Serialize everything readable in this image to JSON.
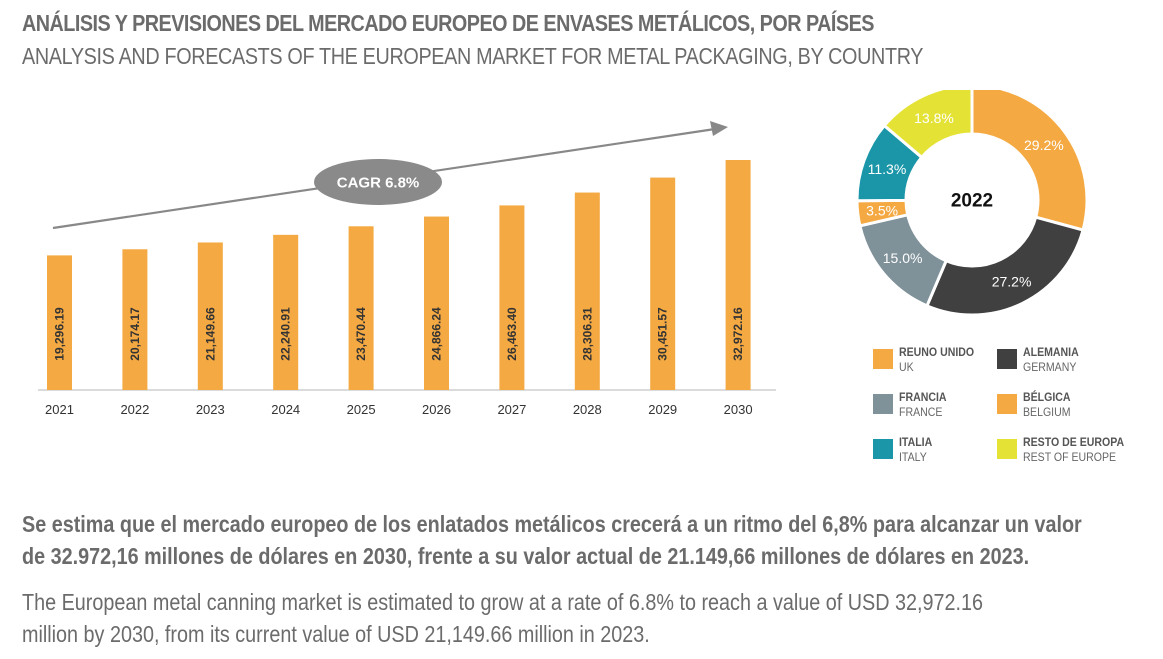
{
  "header": {
    "title_es": "ANÁLISIS Y PREVISIONES DEL MERCADO EUROPEO DE ENVASES METÁLICOS, POR PAÍSES",
    "title_en": "ANALYSIS AND FORECASTS OF THE EUROPEAN MARKET FOR METAL PACKAGING, BY COUNTRY"
  },
  "chart_data": [
    {
      "type": "bar",
      "categories": [
        "2021",
        "2022",
        "2023",
        "2024",
        "2025",
        "2026",
        "2027",
        "2028",
        "2029",
        "2030"
      ],
      "values": [
        19296.19,
        20174.17,
        21149.66,
        22240.91,
        23470.44,
        24866.24,
        26463.4,
        28306.31,
        30451.57,
        32972.16
      ],
      "data_labels": [
        "19,296.19",
        "20,174.17",
        "21,149.66",
        "22,240.91",
        "23,470.44",
        "24,866.24",
        "26,463.40",
        "28,306.31",
        "30,451.57",
        "32,972.16"
      ],
      "annotation": "CAGR 6.8%",
      "color": "#F4A942",
      "grid": false
    },
    {
      "type": "pie",
      "center_label": "2022",
      "slices": [
        {
          "label": "REUNO UNIDO",
          "sublabel": "UK",
          "value": 29.2,
          "text": "29.2%",
          "color": "#F4A942"
        },
        {
          "label": "ALEMANIA",
          "sublabel": "GERMANY",
          "value": 27.2,
          "text": "27.2%",
          "color": "#404040"
        },
        {
          "label": "FRANCIA",
          "sublabel": "FRANCE",
          "value": 15.0,
          "text": "15.0%",
          "color": "#7F9199"
        },
        {
          "label": "BÉLGICA",
          "sublabel": "BELGIUM",
          "value": 3.5,
          "text": "3.5%",
          "color": "#F4A942"
        },
        {
          "label": "ITALIA",
          "sublabel": "ITALY",
          "value": 11.3,
          "text": "11.3%",
          "color": "#1A96A8"
        },
        {
          "label": "RESTO DE EUROPA",
          "sublabel": "REST OF EUROPE",
          "value": 13.8,
          "text": "13.8%",
          "color": "#E5E236"
        }
      ]
    }
  ],
  "legend": [
    {
      "label": "REUNO UNIDO",
      "sublabel": "UK",
      "color": "#F4A942"
    },
    {
      "label": "ALEMANIA",
      "sublabel": "GERMANY",
      "color": "#404040"
    },
    {
      "label": "FRANCIA",
      "sublabel": "FRANCE",
      "color": "#7F9199"
    },
    {
      "label": "BÉLGICA",
      "sublabel": "BELGIUM",
      "color": "#F4A942"
    },
    {
      "label": "ITALIA",
      "sublabel": "ITALY",
      "color": "#1A96A8"
    },
    {
      "label": "RESTO DE EUROPA",
      "sublabel": "REST OF EUROPE",
      "color": "#E5E236"
    }
  ],
  "text": {
    "es_line1": "Se estima que el mercado europeo de los enlatados metálicos crecerá a un ritmo del 6,8% para alcanzar un valor",
    "es_line2": "de 32.972,16 millones de dólares en 2030, frente a su valor actual de 21.149,66 millones de dólares en 2023.",
    "en_line1": "The European metal canning market is estimated to grow at a rate of 6.8% to reach a value of USD 32,972.16",
    "en_line2": "million by 2030, from its current value of USD 21,149.66 million in 2023."
  }
}
